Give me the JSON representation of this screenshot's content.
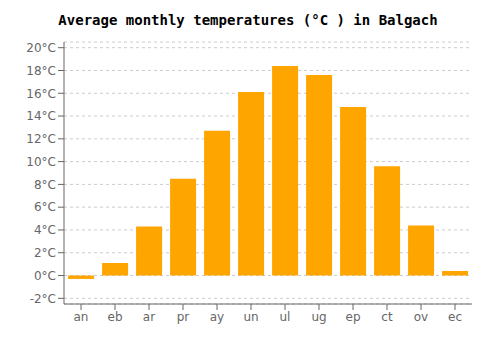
{
  "chart_data": {
    "type": "bar",
    "title": "Average monthly temperatures (°C ) in Balgach",
    "categories": [
      "an",
      "eb",
      "ar",
      "pr",
      "ay",
      "un",
      "ul",
      "ug",
      "ep",
      "ct",
      "ov",
      "ec"
    ],
    "values": [
      -0.3,
      1.1,
      4.3,
      8.5,
      12.7,
      16.1,
      18.4,
      17.6,
      14.8,
      9.6,
      4.4,
      0.4
    ],
    "color": "#FFA500",
    "ylim": [
      -2.5,
      20.5
    ],
    "yticks": [
      {
        "value": -2,
        "label": "-2°C"
      },
      {
        "value": 0,
        "label": "0°C"
      },
      {
        "value": 2,
        "label": "2°C"
      },
      {
        "value": 4,
        "label": "4°C"
      },
      {
        "value": 6,
        "label": "6°C"
      },
      {
        "value": 8,
        "label": "8°C"
      },
      {
        "value": 10,
        "label": "10°C"
      },
      {
        "value": 12,
        "label": "12°C"
      },
      {
        "value": 14,
        "label": "14°C"
      },
      {
        "value": 16,
        "label": "16°C"
      },
      {
        "value": 18,
        "label": "18°C"
      },
      {
        "value": 20,
        "label": "20°C"
      }
    ],
    "grid": true
  }
}
